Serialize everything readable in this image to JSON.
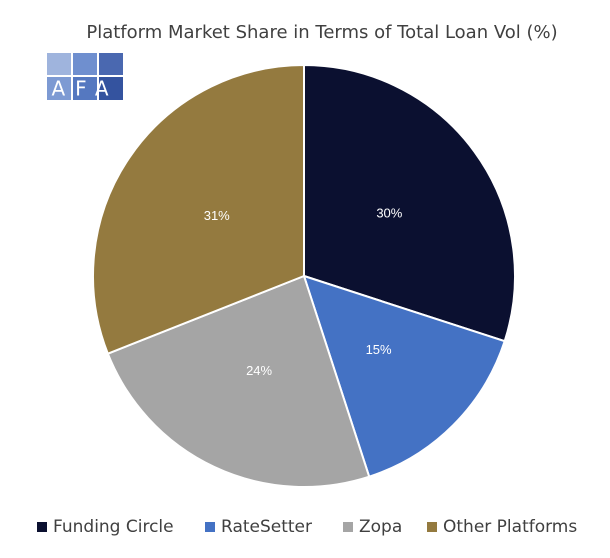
{
  "logo": "AFA",
  "chart_data": {
    "type": "pie",
    "title": "Platform Market Share in Terms of Total Loan Vol (%)",
    "categories": [
      "Funding Circle",
      "RateSetter",
      "Zopa",
      "Other Platforms"
    ],
    "values": [
      30,
      15,
      24,
      31
    ],
    "value_labels": [
      "30%",
      "15%",
      "24%",
      "31%"
    ],
    "colors": [
      "#0b1030",
      "#4472c4",
      "#a5a5a5",
      "#947a3f"
    ],
    "legend": "bottom"
  }
}
